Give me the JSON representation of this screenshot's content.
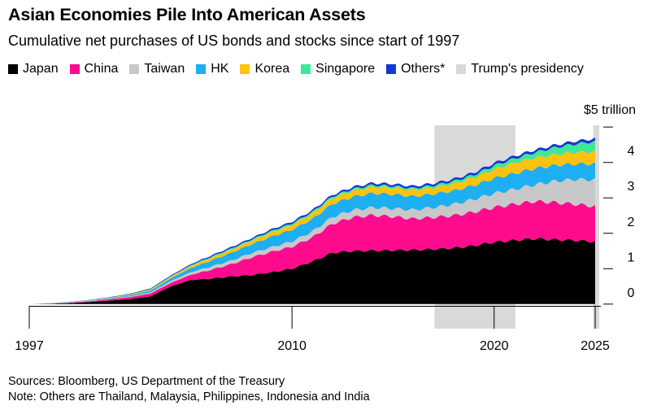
{
  "title": "Asian Economies Pile Into American Assets",
  "subtitle": "Cumulative net purchases of US bonds and stocks since start of 1997",
  "colors": {
    "japan": "#000000",
    "china": "#ff0b8d",
    "taiwan": "#c8c8c8",
    "hk": "#1eaef2",
    "korea": "#ffc20e",
    "singapore": "#3fe898",
    "others": "#1237d6",
    "shade": "#d9d9d9",
    "axis": "#000000"
  },
  "legend": [
    {
      "label": "Japan",
      "color": "#000000"
    },
    {
      "label": "China",
      "color": "#ff0b8d"
    },
    {
      "label": "Taiwan",
      "color": "#c8c8c8"
    },
    {
      "label": "HK",
      "color": "#1eaef2"
    },
    {
      "label": "Korea",
      "color": "#ffc20e"
    },
    {
      "label": "Singapore",
      "color": "#3fe898"
    },
    {
      "label": "Others*",
      "color": "#1237d6"
    },
    {
      "label": "Trump's presidency",
      "color": "#d9d9d9"
    }
  ],
  "chart_data": {
    "type": "area",
    "stacked": true,
    "x_tick_labels": [
      "1997",
      "2010",
      "2020",
      "2025"
    ],
    "x_ticks": [
      1997,
      2010,
      2020,
      2025
    ],
    "xlim": [
      1997,
      2025.2
    ],
    "y_unit_label": "$5 trillion",
    "y_tick_labels": [
      "0",
      "1",
      "2",
      "3",
      "4"
    ],
    "y_ticks": [
      0,
      1,
      2,
      3,
      4,
      5
    ],
    "ylim": [
      -0.05,
      5.05
    ],
    "shaded_periods": [
      {
        "label": "Trump's presidency",
        "start": 2017.05,
        "end": 2021.05
      },
      {
        "label": "Trump's presidency",
        "start": 2024.9,
        "end": 2025.2
      }
    ],
    "x": [
      1997,
      1998,
      1999,
      2000,
      2001,
      2002,
      2003,
      2004,
      2005,
      2006,
      2007,
      2008,
      2009,
      2010,
      2011,
      2012,
      2013,
      2014,
      2015,
      2016,
      2017,
      2018,
      2019,
      2020,
      2021,
      2022,
      2023,
      2024,
      2025
    ],
    "series": [
      {
        "name": "Japan",
        "values": [
          0.0,
          0.01,
          0.03,
          0.06,
          0.1,
          0.14,
          0.22,
          0.5,
          0.68,
          0.72,
          0.78,
          0.82,
          0.9,
          1.0,
          1.2,
          1.45,
          1.5,
          1.51,
          1.52,
          1.53,
          1.55,
          1.58,
          1.65,
          1.75,
          1.8,
          1.85,
          1.82,
          1.8,
          1.76
        ]
      },
      {
        "name": "China",
        "values": [
          0.0,
          0.005,
          0.01,
          0.02,
          0.04,
          0.06,
          0.08,
          0.1,
          0.15,
          0.25,
          0.35,
          0.5,
          0.58,
          0.62,
          0.68,
          0.82,
          0.95,
          1.0,
          0.95,
          0.88,
          0.9,
          0.92,
          0.95,
          0.98,
          1.02,
          1.05,
          1.05,
          1.02,
          1.0
        ]
      },
      {
        "name": "Taiwan",
        "values": [
          0.0,
          0.002,
          0.005,
          0.01,
          0.01,
          0.02,
          0.03,
          0.05,
          0.07,
          0.09,
          0.1,
          0.12,
          0.13,
          0.15,
          0.17,
          0.19,
          0.2,
          0.22,
          0.23,
          0.25,
          0.28,
          0.32,
          0.36,
          0.4,
          0.42,
          0.47,
          0.6,
          0.7,
          0.75
        ]
      },
      {
        "name": "HK",
        "values": [
          0.0,
          0.003,
          0.006,
          0.01,
          0.02,
          0.03,
          0.05,
          0.08,
          0.12,
          0.17,
          0.22,
          0.25,
          0.3,
          0.33,
          0.35,
          0.37,
          0.38,
          0.4,
          0.4,
          0.38,
          0.38,
          0.38,
          0.39,
          0.42,
          0.45,
          0.46,
          0.45,
          0.44,
          0.45
        ]
      },
      {
        "name": "Korea",
        "values": [
          0.0,
          0.002,
          0.004,
          0.006,
          0.01,
          0.02,
          0.03,
          0.04,
          0.06,
          0.08,
          0.09,
          0.1,
          0.12,
          0.13,
          0.15,
          0.16,
          0.17,
          0.18,
          0.18,
          0.18,
          0.18,
          0.2,
          0.22,
          0.26,
          0.3,
          0.3,
          0.3,
          0.32,
          0.35
        ]
      },
      {
        "name": "Singapore",
        "values": [
          0.0,
          0.002,
          0.003,
          0.005,
          0.008,
          0.01,
          0.012,
          0.015,
          0.02,
          0.025,
          0.03,
          0.035,
          0.04,
          0.045,
          0.05,
          0.05,
          0.05,
          0.05,
          0.05,
          0.05,
          0.06,
          0.07,
          0.08,
          0.1,
          0.12,
          0.15,
          0.2,
          0.24,
          0.28
        ]
      },
      {
        "name": "Others*",
        "values": [
          0.0,
          0.003,
          0.005,
          0.008,
          0.01,
          0.015,
          0.02,
          0.025,
          0.03,
          0.035,
          0.04,
          0.04,
          0.045,
          0.05,
          0.05,
          0.05,
          0.055,
          0.06,
          0.06,
          0.06,
          0.06,
          0.06,
          0.065,
          0.07,
          0.07,
          0.07,
          0.07,
          0.08,
          0.08
        ]
      }
    ]
  },
  "footer": {
    "sources": "Sources: Bloomberg, US Department of the Treasury",
    "note": "Note: Others are Thailand, Malaysia, Philippines, Indonesia and India"
  }
}
